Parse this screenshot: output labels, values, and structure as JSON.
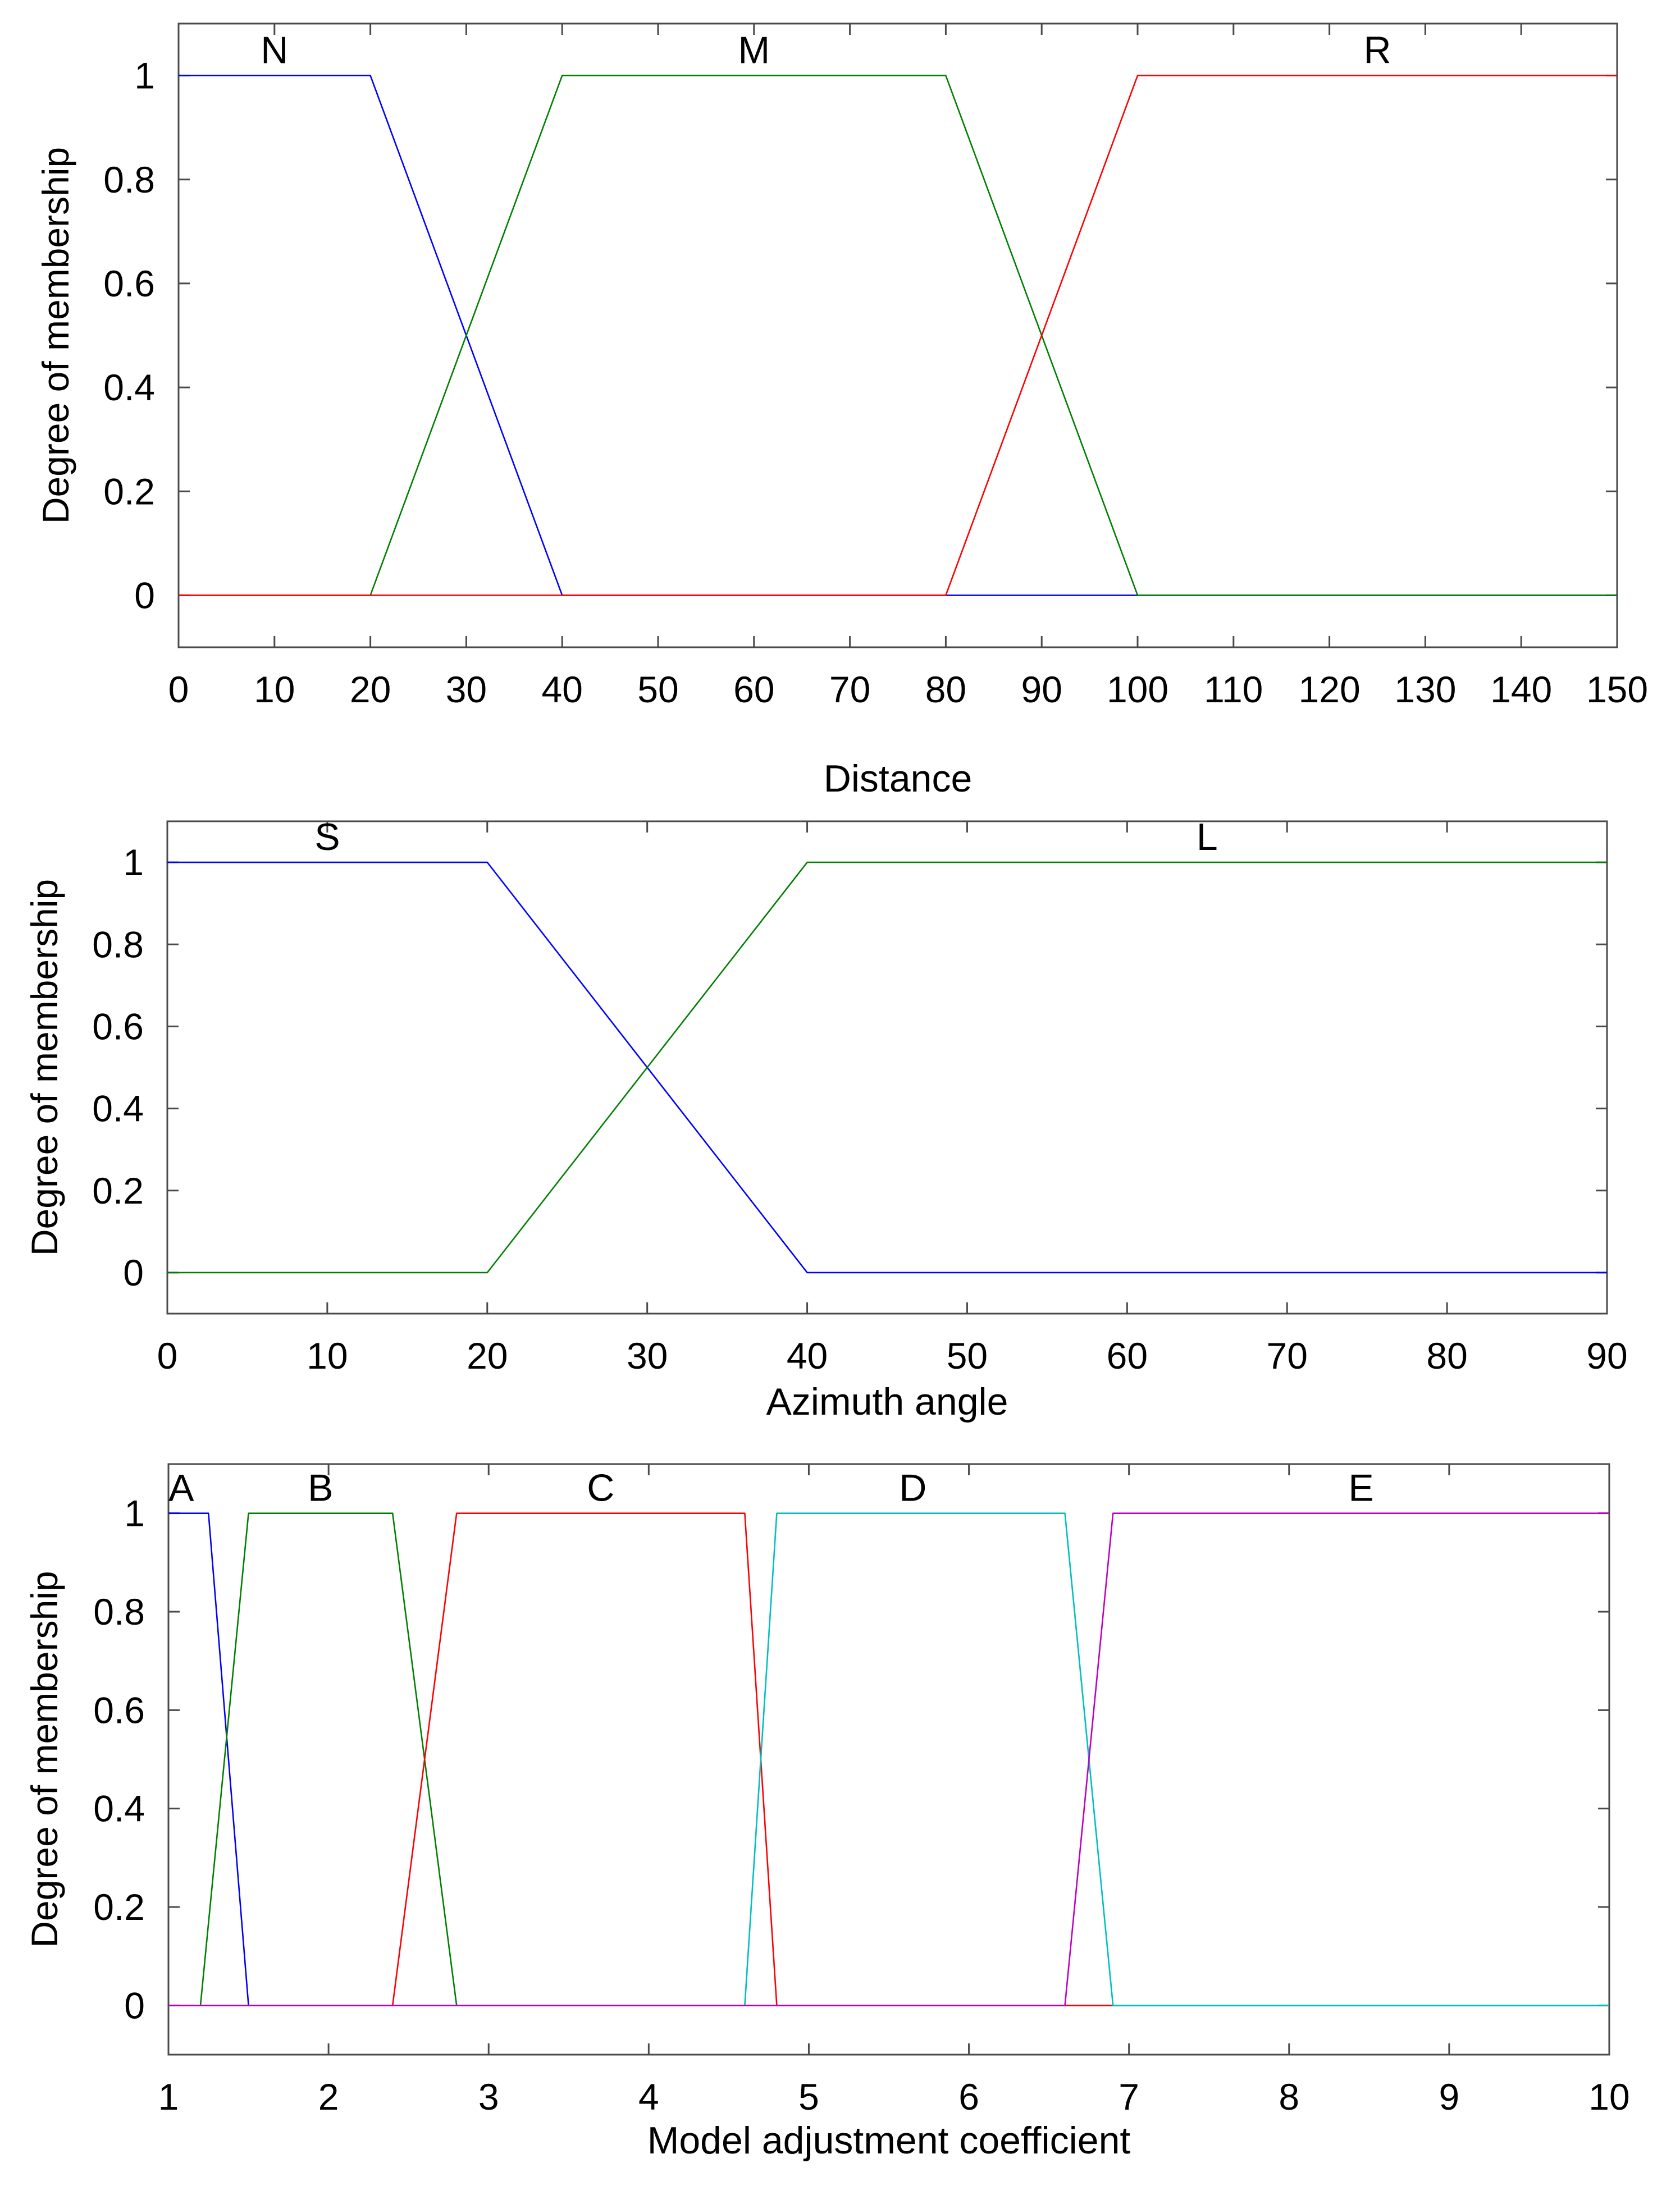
{
  "chart_data": [
    {
      "type": "line",
      "title": "",
      "xlabel": "Distance",
      "ylabel": "Degree of membership",
      "xlim": [
        0,
        150
      ],
      "ylim": [
        -0.1,
        1.1
      ],
      "xticks": [
        0,
        10,
        20,
        30,
        40,
        50,
        60,
        70,
        80,
        90,
        100,
        110,
        120,
        130,
        140,
        150
      ],
      "yticks": [
        0,
        0.2,
        0.4,
        0.6,
        0.8,
        1
      ],
      "ytick_labels": [
        "0",
        "0.2",
        "0.4",
        "0.6",
        "0.8",
        "1"
      ],
      "grid": false,
      "series": [
        {
          "name": "N",
          "color": "#0000ff",
          "x": [
            0,
            20,
            40,
            150
          ],
          "y": [
            1,
            1,
            0,
            0
          ],
          "label_x": 10
        },
        {
          "name": "M",
          "color": "#008000",
          "x": [
            0,
            20,
            40,
            80,
            100,
            150
          ],
          "y": [
            0,
            0,
            1,
            1,
            0,
            0
          ],
          "label_x": 60
        },
        {
          "name": "R",
          "color": "#ff0000",
          "x": [
            0,
            80,
            100,
            150
          ],
          "y": [
            0,
            0,
            1,
            1
          ],
          "label_x": 125
        }
      ]
    },
    {
      "type": "line",
      "title": "",
      "xlabel": "Azimuth angle",
      "ylabel": "Degree of membership",
      "xlim": [
        0,
        90
      ],
      "ylim": [
        -0.1,
        1.1
      ],
      "xticks": [
        0,
        10,
        20,
        30,
        40,
        50,
        60,
        70,
        80,
        90
      ],
      "yticks": [
        0,
        0.2,
        0.4,
        0.6,
        0.8,
        1
      ],
      "ytick_labels": [
        "0",
        "0.2",
        "0.4",
        "0.6",
        "0.8",
        "1"
      ],
      "grid": false,
      "series": [
        {
          "name": "S",
          "color": "#0000ff",
          "x": [
            0,
            20,
            40,
            90
          ],
          "y": [
            1,
            1,
            0,
            0
          ],
          "label_x": 10
        },
        {
          "name": "L",
          "color": "#008000",
          "x": [
            0,
            20,
            40,
            90
          ],
          "y": [
            0,
            0,
            1,
            1
          ],
          "label_x": 65
        }
      ]
    },
    {
      "type": "line",
      "title": "",
      "xlabel": "Model adjustment coefficient",
      "ylabel": "Degree of membership",
      "xlim": [
        1,
        10
      ],
      "ylim": [
        -0.1,
        1.1
      ],
      "xticks": [
        1,
        2,
        3,
        4,
        5,
        6,
        7,
        8,
        9,
        10
      ],
      "yticks": [
        0,
        0.2,
        0.4,
        0.6,
        0.8,
        1
      ],
      "ytick_labels": [
        "0",
        "0.2",
        "0.4",
        "0.6",
        "0.8",
        "1"
      ],
      "grid": false,
      "series": [
        {
          "name": "A",
          "color": "#0000ff",
          "x": [
            1,
            1.25,
            1.5,
            10
          ],
          "y": [
            1,
            1,
            0,
            0
          ],
          "label_x": 1.08
        },
        {
          "name": "B",
          "color": "#008000",
          "x": [
            1,
            1.2,
            1.5,
            2.4,
            2.8,
            10
          ],
          "y": [
            0,
            0,
            1,
            1,
            0,
            0
          ],
          "label_x": 1.95
        },
        {
          "name": "C",
          "color": "#ff0000",
          "x": [
            1,
            2.4,
            2.8,
            4.6,
            4.8,
            10
          ],
          "y": [
            0,
            0,
            1,
            1,
            0,
            0
          ],
          "label_x": 3.7
        },
        {
          "name": "D",
          "color": "#00bfbf",
          "x": [
            1,
            4.6,
            4.8,
            6.6,
            6.9,
            10
          ],
          "y": [
            0,
            0,
            1,
            1,
            0,
            0
          ],
          "label_x": 5.65
        },
        {
          "name": "E",
          "color": "#bf00bf",
          "x": [
            1,
            6.6,
            6.9,
            10
          ],
          "y": [
            0,
            0,
            1,
            1
          ],
          "label_x": 8.45
        }
      ]
    }
  ]
}
